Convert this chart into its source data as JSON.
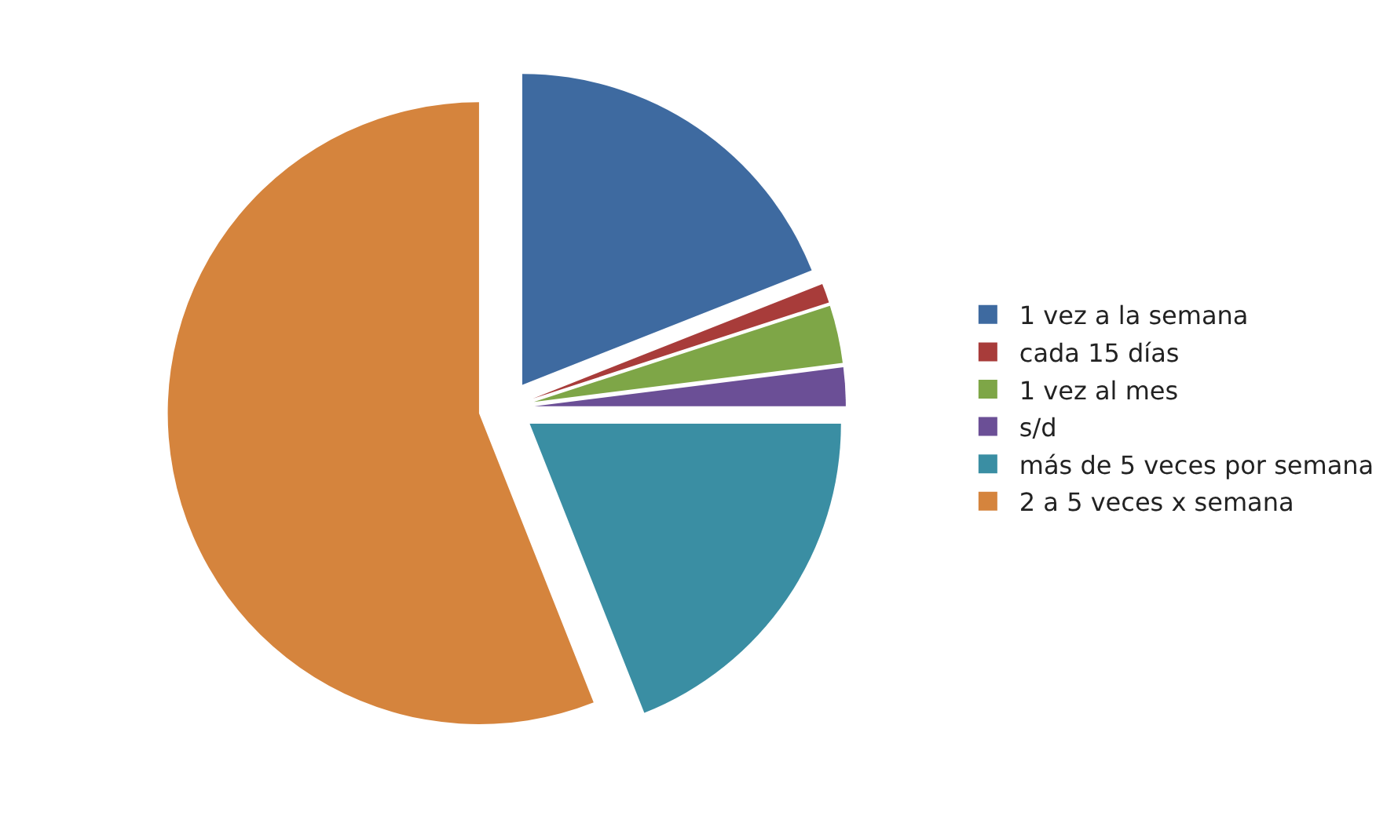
{
  "chart_data": {
    "type": "pie",
    "categories": [
      "1 vez a la semana",
      "cada 15 días",
      "1 vez al mes",
      "s/d",
      "más de 5 veces por semana",
      "2 a 5 veces x semana"
    ],
    "values": [
      19,
      1,
      3,
      2,
      19,
      56
    ],
    "colors": [
      "#3e6aa0",
      "#a83c3a",
      "#7ea647",
      "#6b4f96",
      "#3a8ea3",
      "#d5843d"
    ],
    "legend": "right"
  }
}
